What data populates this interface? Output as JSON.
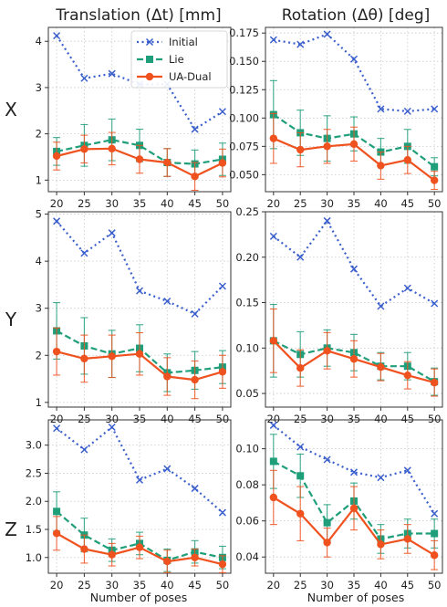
{
  "column_titles": [
    "Translation (Δt) [mm]",
    "Rotation (Δθ) [deg]"
  ],
  "row_labels": [
    "X",
    "Y",
    "Z"
  ],
  "xlabel": "Number of poses",
  "legend": {
    "position": "top-right of first panel",
    "entries": [
      "Initial",
      "Lie",
      "UA-Dual"
    ]
  },
  "colors": {
    "Initial": "#3a5fcd",
    "Lie": "#1f9e7a",
    "UA-Dual": "#f0521f"
  },
  "chart_data": [
    {
      "type": "line",
      "title": "Translation (Δt) [mm]",
      "row": "X",
      "xlabel": "Number of poses",
      "x": [
        20,
        25,
        30,
        35,
        40,
        45,
        50
      ],
      "ylim": [
        0.75,
        4.3
      ],
      "yticks": [
        1,
        2,
        3,
        4
      ],
      "grid": true,
      "series": [
        {
          "name": "Initial",
          "values": [
            4.12,
            3.2,
            3.3,
            3.07,
            3.07,
            2.1,
            2.48
          ]
        },
        {
          "name": "Lie",
          "values": [
            1.62,
            1.75,
            1.87,
            1.75,
            1.38,
            1.35,
            1.45
          ],
          "error": [
            0.3,
            0.45,
            0.45,
            0.35,
            0.3,
            0.3,
            0.35
          ]
        },
        {
          "name": "UA-Dual",
          "values": [
            1.52,
            1.67,
            1.68,
            1.45,
            1.38,
            1.08,
            1.37
          ],
          "error": [
            0.3,
            0.3,
            0.35,
            0.3,
            0.3,
            0.3,
            0.3
          ]
        }
      ]
    },
    {
      "type": "line",
      "title": "Rotation (Δθ) [deg]",
      "row": "X",
      "xlabel": "Number of poses",
      "x": [
        20,
        25,
        30,
        35,
        40,
        45,
        50
      ],
      "ylim": [
        0.035,
        0.18
      ],
      "yticks": [
        0.05,
        0.075,
        0.1,
        0.125,
        0.15,
        0.175
      ],
      "grid": true,
      "series": [
        {
          "name": "Initial",
          "values": [
            0.169,
            0.165,
            0.174,
            0.152,
            0.108,
            0.106,
            0.108
          ]
        },
        {
          "name": "Lie",
          "values": [
            0.103,
            0.087,
            0.082,
            0.086,
            0.07,
            0.075,
            0.057
          ],
          "error": [
            0.03,
            0.02,
            0.02,
            0.015,
            0.012,
            0.015,
            0.008
          ]
        },
        {
          "name": "UA-Dual",
          "values": [
            0.082,
            0.072,
            0.075,
            0.077,
            0.058,
            0.063,
            0.045
          ],
          "error": [
            0.022,
            0.015,
            0.015,
            0.015,
            0.012,
            0.012,
            0.008
          ]
        }
      ]
    },
    {
      "type": "line",
      "title": "",
      "row": "Y",
      "xlabel": "Number of poses",
      "x": [
        20,
        25,
        30,
        35,
        40,
        45,
        50
      ],
      "ylim": [
        0.9,
        5.05
      ],
      "yticks": [
        1,
        2,
        3,
        4,
        5
      ],
      "grid": true,
      "series": [
        {
          "name": "Initial",
          "values": [
            4.85,
            4.17,
            4.6,
            3.37,
            3.15,
            2.88,
            3.47
          ]
        },
        {
          "name": "Lie",
          "values": [
            2.52,
            2.2,
            2.03,
            2.15,
            1.63,
            1.68,
            1.75
          ],
          "error": [
            0.6,
            0.6,
            0.5,
            0.5,
            0.4,
            0.4,
            0.35
          ]
        },
        {
          "name": "UA-Dual",
          "values": [
            2.08,
            1.93,
            1.98,
            2.03,
            1.55,
            1.48,
            1.65
          ],
          "error": [
            0.5,
            0.5,
            0.45,
            0.45,
            0.4,
            0.4,
            0.35
          ]
        }
      ]
    },
    {
      "type": "line",
      "title": "",
      "row": "Y",
      "xlabel": "Number of poses",
      "x": [
        20,
        25,
        30,
        35,
        40,
        45,
        50
      ],
      "ylim": [
        0.035,
        0.25
      ],
      "yticks": [
        0.05,
        0.1,
        0.15,
        0.2,
        0.25
      ],
      "grid": true,
      "series": [
        {
          "name": "Initial",
          "values": [
            0.223,
            0.2,
            0.24,
            0.187,
            0.146,
            0.166,
            0.149
          ]
        },
        {
          "name": "Lie",
          "values": [
            0.108,
            0.093,
            0.1,
            0.095,
            0.08,
            0.08,
            0.063
          ],
          "error": [
            0.04,
            0.025,
            0.02,
            0.02,
            0.015,
            0.015,
            0.015
          ]
        },
        {
          "name": "UA-Dual",
          "values": [
            0.108,
            0.078,
            0.097,
            0.088,
            0.079,
            0.07,
            0.062
          ],
          "error": [
            0.035,
            0.02,
            0.02,
            0.02,
            0.015,
            0.015,
            0.015
          ]
        }
      ]
    },
    {
      "type": "line",
      "title": "",
      "row": "Z",
      "xlabel": "Number of poses",
      "x": [
        20,
        25,
        30,
        35,
        40,
        45,
        50
      ],
      "ylim": [
        0.72,
        3.45
      ],
      "yticks": [
        1.0,
        1.5,
        2.0,
        2.5,
        3.0
      ],
      "grid": true,
      "series": [
        {
          "name": "Initial",
          "values": [
            3.3,
            2.92,
            3.32,
            2.38,
            2.58,
            2.23,
            1.8
          ]
        },
        {
          "name": "Lie",
          "values": [
            1.82,
            1.4,
            1.13,
            1.25,
            0.95,
            1.1,
            1.0
          ],
          "error": [
            0.35,
            0.3,
            0.2,
            0.2,
            0.2,
            0.2,
            0.2
          ]
        },
        {
          "name": "UA-Dual",
          "values": [
            1.43,
            1.15,
            1.05,
            1.18,
            0.93,
            1.0,
            0.88
          ],
          "error": [
            0.3,
            0.25,
            0.2,
            0.2,
            0.2,
            0.15,
            0.15
          ]
        }
      ]
    },
    {
      "type": "line",
      "title": "",
      "row": "Z",
      "xlabel": "Number of poses",
      "x": [
        20,
        25,
        30,
        35,
        40,
        45,
        50
      ],
      "ylim": [
        0.031,
        0.116
      ],
      "yticks": [
        0.04,
        0.06,
        0.08,
        0.1
      ],
      "grid": true,
      "series": [
        {
          "name": "Initial",
          "values": [
            0.113,
            0.101,
            0.094,
            0.087,
            0.084,
            0.088,
            0.064
          ]
        },
        {
          "name": "Lie",
          "values": [
            0.093,
            0.085,
            0.059,
            0.071,
            0.05,
            0.053,
            0.053
          ],
          "error": [
            0.015,
            0.012,
            0.01,
            0.01,
            0.008,
            0.008,
            0.008
          ]
        },
        {
          "name": "UA-Dual",
          "values": [
            0.073,
            0.064,
            0.048,
            0.067,
            0.047,
            0.05,
            0.041
          ],
          "error": [
            0.015,
            0.015,
            0.008,
            0.012,
            0.008,
            0.008,
            0.008
          ]
        }
      ]
    }
  ]
}
